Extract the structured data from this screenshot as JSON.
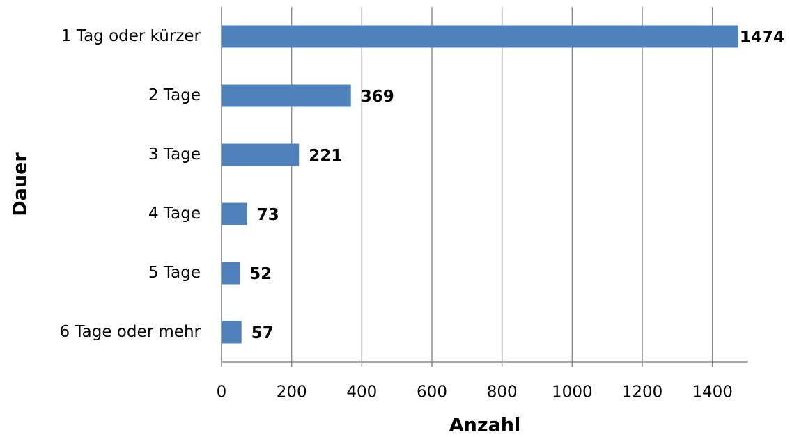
{
  "chart_data": {
    "type": "bar",
    "orientation": "horizontal",
    "categories": [
      "1 Tag oder kürzer",
      "2 Tage",
      "3 Tage",
      "4 Tage",
      "5 Tage",
      "6 Tage oder mehr"
    ],
    "values": [
      1474,
      369,
      221,
      73,
      52,
      57
    ],
    "color": "#4f81bd",
    "xlabel": "Anzahl",
    "ylabel": "Dauer",
    "xlim": [
      0,
      1500
    ],
    "xticks": [
      0,
      200,
      400,
      600,
      800,
      1000,
      1200,
      1400
    ],
    "grid": true
  }
}
